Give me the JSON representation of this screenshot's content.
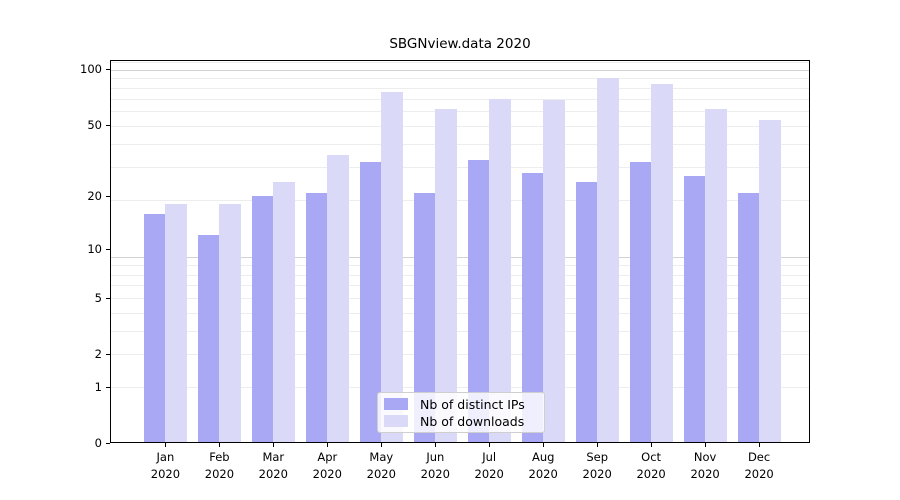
{
  "chart_data": {
    "type": "bar",
    "title": "SBGNview.data 2020",
    "categories": [
      "Jan",
      "Feb",
      "Mar",
      "Apr",
      "May",
      "Jun",
      "Jul",
      "Aug",
      "Sep",
      "Oct",
      "Nov",
      "Dec"
    ],
    "year": "2020",
    "series": [
      {
        "name": "Nb of distinct IPs",
        "color": "#a8a8f5",
        "values": [
          16,
          12,
          20,
          21,
          31,
          21,
          32,
          27,
          24,
          31,
          26,
          21
        ]
      },
      {
        "name": "Nb of downloads",
        "color": "#dadaf8",
        "values": [
          18,
          18,
          24,
          34,
          75,
          61,
          69,
          68,
          90,
          83,
          61,
          53
        ]
      }
    ],
    "xlabel": "",
    "ylabel": "",
    "yscale": "log1p",
    "yticks": [
      0,
      1,
      2,
      5,
      10,
      20,
      50,
      100
    ],
    "ylim": [
      0,
      112
    ],
    "grid": "horizontal, log minor + major",
    "legend_position": "inside bottom-center"
  }
}
